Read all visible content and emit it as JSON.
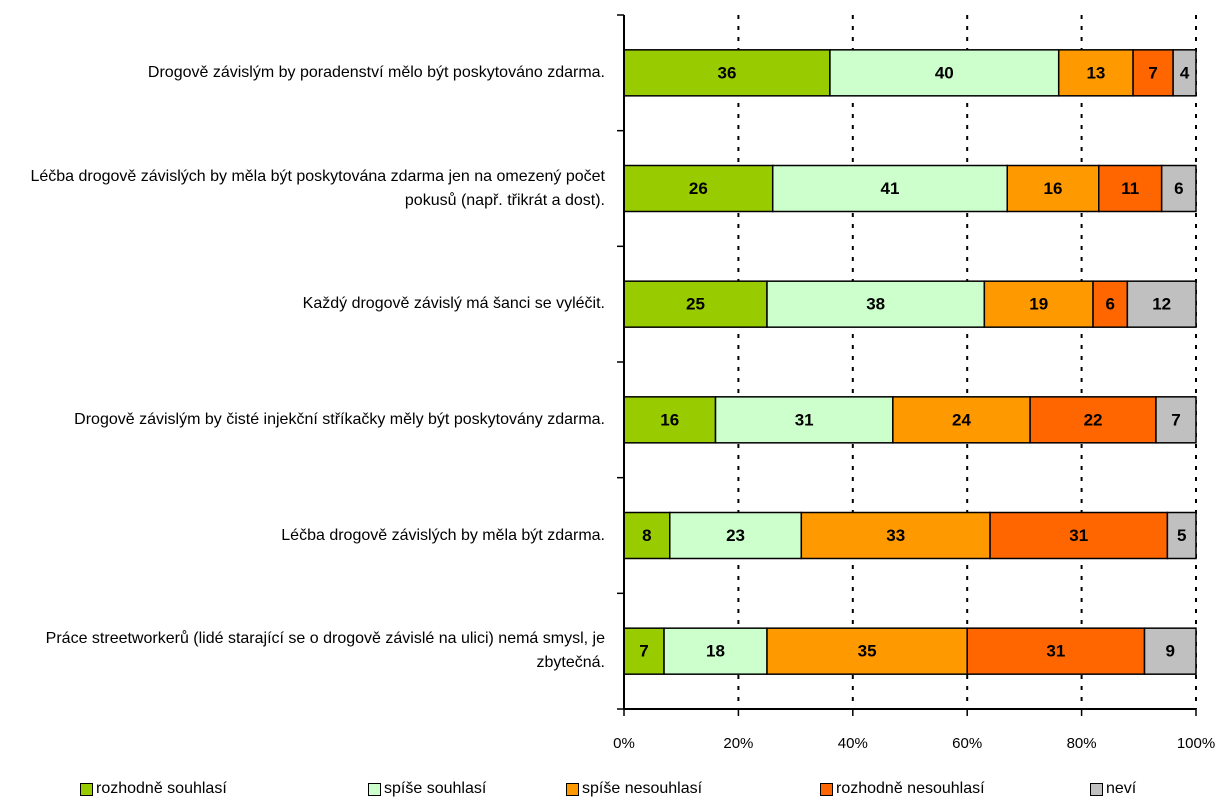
{
  "chart_data": {
    "type": "stacked_bar_horizontal",
    "categories": [
      "Drogově závislým by poradenství mělo být poskytováno zdarma.",
      "Léčba drogově závislých by měla být poskytována zdarma jen na omezený počet pokusů (např. třikrát a dost).",
      "Každý drogově závislý má šanci se vyléčit.",
      "Drogově závislým by čisté injekční stříkačky měly být poskytovány zdarma.",
      "Léčba drogově závislých by měla být zdarma.",
      "Práce streetworkerů (lidé starající se o drogově závislé na ulici) nemá smysl, je zbytečná."
    ],
    "series": [
      {
        "name": "rozhodně souhlasí",
        "color": "#99cc00",
        "values": [
          36,
          26,
          25,
          16,
          8,
          7
        ]
      },
      {
        "name": "spíše souhlasí",
        "color": "#ccffcc",
        "values": [
          40,
          41,
          38,
          31,
          23,
          18
        ]
      },
      {
        "name": "spíše nesouhlasí",
        "color": "#ff9900",
        "values": [
          13,
          16,
          19,
          24,
          33,
          35
        ]
      },
      {
        "name": "rozhodně nesouhlasí",
        "color": "#ff6600",
        "values": [
          7,
          11,
          6,
          22,
          31,
          31
        ]
      },
      {
        "name": "neví",
        "color": "#c0c0c0",
        "values": [
          4,
          6,
          12,
          7,
          5,
          9
        ]
      }
    ],
    "xlim": [
      0,
      100
    ],
    "xticks": [
      {
        "value": 0,
        "label": "0%"
      },
      {
        "value": 20,
        "label": "20%"
      },
      {
        "value": 40,
        "label": "40%"
      },
      {
        "value": 60,
        "label": "60%"
      },
      {
        "value": 80,
        "label": "80%"
      },
      {
        "value": 100,
        "label": "100%"
      }
    ],
    "grid": true
  }
}
